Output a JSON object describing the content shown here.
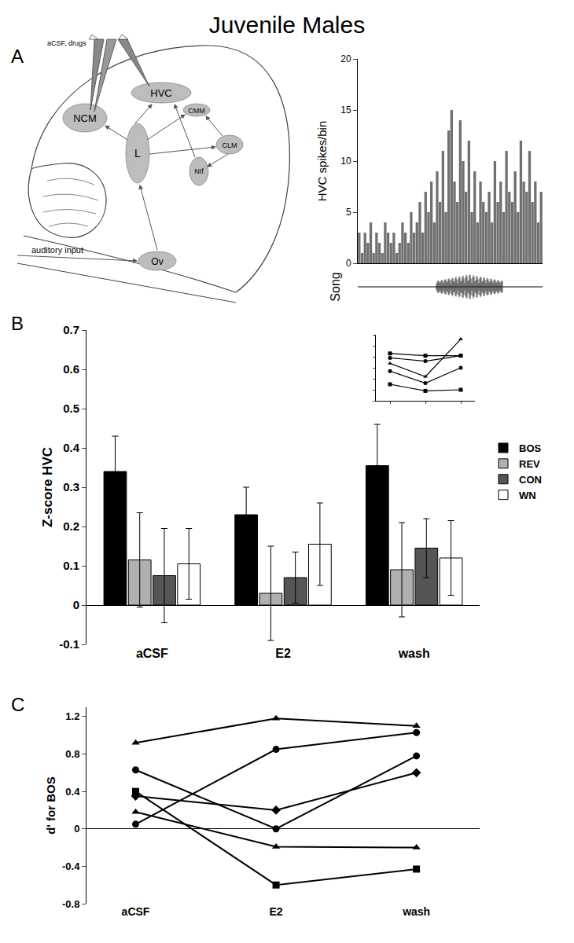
{
  "title": "Juvenile Males",
  "panel_labels": [
    "A",
    "B",
    "C"
  ],
  "diagram": {
    "electrode_label": "aCSF, drugs",
    "regions": [
      "HVC",
      "NCM",
      "CMM",
      "L",
      "CLM",
      "NIf",
      "Ov"
    ],
    "input_label": "auditory input",
    "song_label": "Song"
  },
  "chart_data": [
    {
      "type": "bar",
      "ylabel": "HVC spikes/bin",
      "color": "#707070",
      "categories": [
        null,
        null,
        null,
        null,
        null,
        null,
        null,
        null,
        null,
        null,
        null,
        null,
        null,
        null,
        null,
        null,
        null,
        null,
        null,
        null,
        null,
        null,
        null,
        null,
        null,
        null,
        null,
        null,
        null,
        null,
        null,
        null,
        null,
        null,
        null,
        null,
        null,
        null,
        null,
        null,
        null,
        null,
        null,
        null,
        null,
        null,
        null,
        null,
        null,
        null,
        null,
        null,
        null,
        null,
        null,
        null,
        null,
        null,
        null,
        null,
        null,
        null,
        null,
        null
      ],
      "values": [
        3,
        1,
        3,
        2,
        4,
        1,
        3,
        2,
        1,
        4,
        3,
        2,
        3,
        1,
        2,
        4,
        3,
        2,
        5,
        3,
        4,
        6,
        3,
        7,
        5,
        8,
        4,
        9,
        6,
        11,
        5,
        13,
        15,
        8,
        6,
        14,
        10,
        7,
        12,
        5,
        9,
        4,
        8,
        6,
        5,
        7,
        4,
        10,
        6,
        8,
        5,
        11,
        7,
        6,
        9,
        5,
        12,
        8,
        7,
        11,
        6,
        8,
        4,
        7
      ],
      "ylim": [
        0,
        20
      ],
      "yticks": [
        0,
        5,
        10,
        15,
        20
      ],
      "tick_labels": "y"
    },
    {
      "type": "bar",
      "ylabel": "Z-score HVC",
      "categories": [
        "aCSF",
        "E2",
        "wash"
      ],
      "series": [
        {
          "name": "BOS",
          "color": "#000000",
          "values": [
            0.34,
            0.23,
            0.355
          ],
          "error": [
            0.09,
            0.07,
            0.105
          ]
        },
        {
          "name": "REV",
          "color": "#b0b0b0",
          "values": [
            0.115,
            0.03,
            0.09
          ],
          "error": [
            0.12,
            0.12,
            0.12
          ]
        },
        {
          "name": "CON",
          "color": "#555555",
          "values": [
            0.075,
            0.07,
            0.145
          ],
          "error": [
            0.12,
            0.065,
            0.075
          ]
        },
        {
          "name": "WN",
          "color": "#ffffff",
          "values": [
            0.105,
            0.155,
            0.12
          ],
          "error": [
            0.09,
            0.105,
            0.095
          ]
        }
      ],
      "ylim": [
        -0.1,
        0.7
      ],
      "yticks": [
        -0.1,
        0,
        0.1,
        0.2,
        0.3,
        0.4,
        0.5,
        0.6,
        0.7
      ],
      "legend": "right"
    },
    {
      "type": "line",
      "x": [
        1,
        2,
        3
      ],
      "xlim": [
        0.6,
        3.4
      ],
      "xticks": [
        1,
        2,
        3
      ],
      "ylim": [
        0,
        6
      ],
      "yticks": [
        0,
        1,
        2,
        3,
        4,
        5,
        6
      ],
      "tick_labels": false,
      "series": [
        {
          "color": "#000000",
          "marker": "square",
          "values": [
            4.3,
            4.1,
            4.1
          ]
        },
        {
          "color": "#000000",
          "marker": "circle",
          "values": [
            3.9,
            3.6,
            4.1
          ]
        },
        {
          "color": "#000000",
          "marker": "triangle-up",
          "values": [
            3.4,
            2.2,
            5.6
          ]
        },
        {
          "color": "#000000",
          "marker": "circle",
          "values": [
            2.7,
            1.6,
            3.0
          ]
        },
        {
          "color": "#000000",
          "marker": "square",
          "values": [
            1.5,
            0.9,
            1.0
          ]
        }
      ]
    },
    {
      "type": "line",
      "ylabel": "d' for BOS",
      "categories": [
        "aCSF",
        "E2",
        "wash"
      ],
      "ylim": [
        -0.8,
        1.3
      ],
      "yticks": [
        -0.8,
        -0.4,
        0,
        0.4,
        0.8,
        1.2
      ],
      "series": [
        {
          "color": "#000000",
          "marker": "triangle-up",
          "values": [
            0.92,
            1.18,
            1.1
          ]
        },
        {
          "color": "#000000",
          "marker": "circle",
          "values": [
            0.05,
            0.85,
            1.03
          ]
        },
        {
          "color": "#000000",
          "marker": "circle",
          "values": [
            0.63,
            0.0,
            0.78
          ]
        },
        {
          "color": "#000000",
          "marker": "diamond",
          "values": [
            0.35,
            0.2,
            0.6
          ]
        },
        {
          "color": "#000000",
          "marker": "triangle-up",
          "values": [
            0.18,
            -0.19,
            -0.2
          ]
        },
        {
          "color": "#000000",
          "marker": "square",
          "values": [
            0.4,
            -0.6,
            -0.43
          ]
        }
      ]
    }
  ]
}
